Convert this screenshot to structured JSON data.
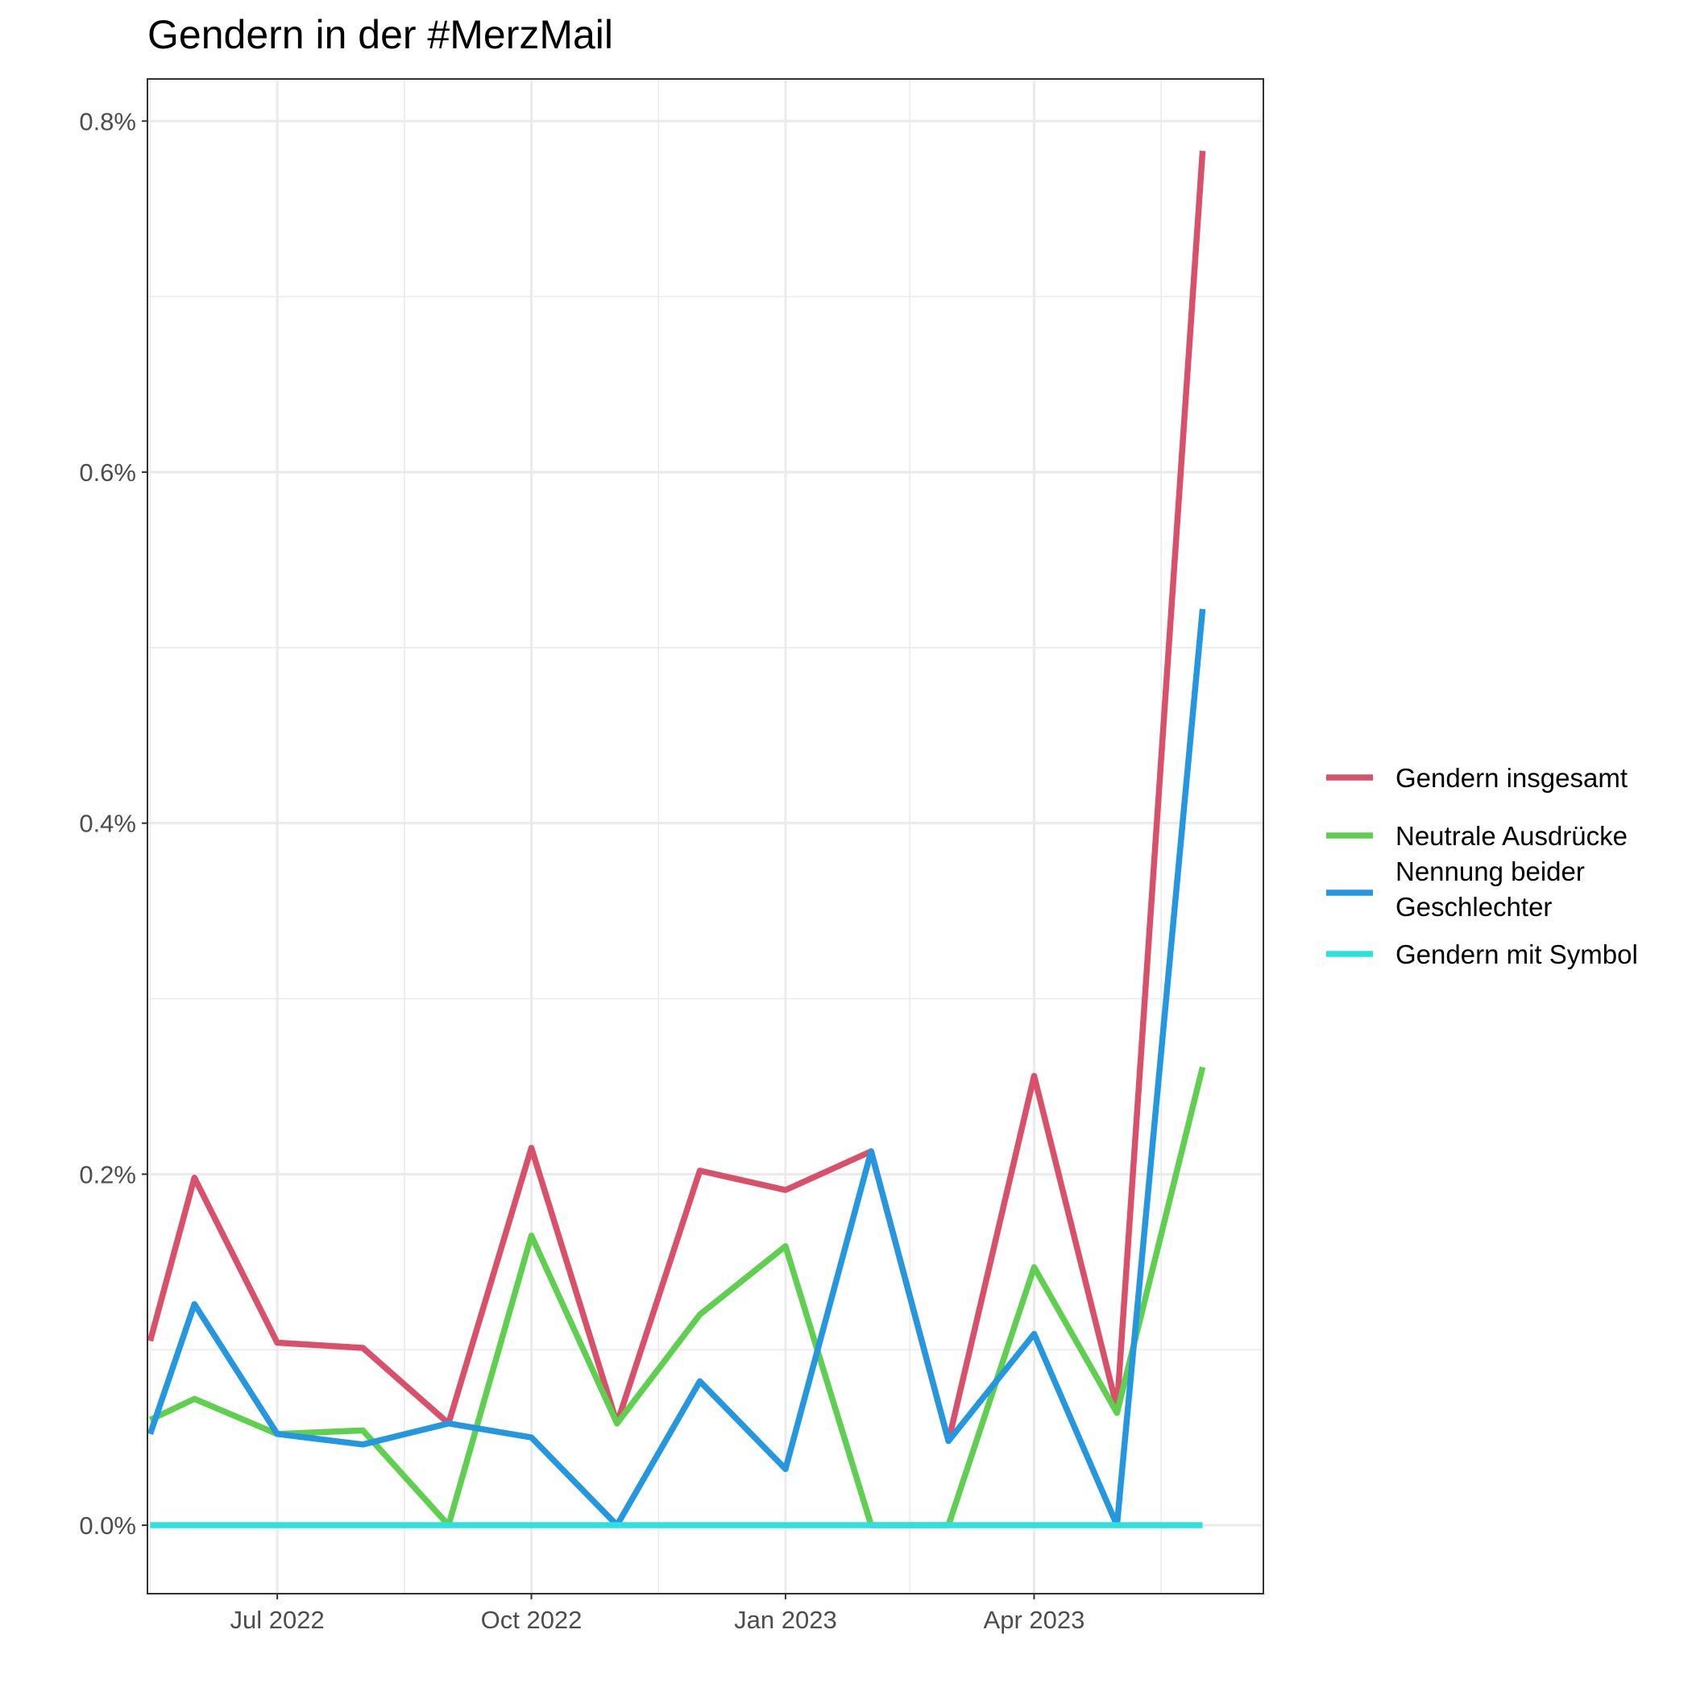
{
  "chart_data": {
    "type": "line",
    "title": "Gendern in der #MerzMail",
    "xlabel": "",
    "ylabel": "",
    "x": [
      "2022-05-16",
      "2022-06-01",
      "2022-07-01",
      "2022-08-01",
      "2022-09-01",
      "2022-10-01",
      "2022-11-01",
      "2022-12-01",
      "2023-01-01",
      "2023-02-01",
      "2023-03-01",
      "2023-04-01",
      "2023-05-01",
      "2023-06-01"
    ],
    "x_ticks": [
      "2022-07-01",
      "2022-10-01",
      "2023-01-01",
      "2023-04-01"
    ],
    "x_tick_labels": [
      "Jul 2022",
      "Oct 2022",
      "Jan 2023",
      "Apr 2023"
    ],
    "xlim": [
      "2022-05-15",
      "2023-06-23"
    ],
    "y_ticks": [
      0,
      0.2,
      0.4,
      0.6,
      0.8
    ],
    "y_tick_labels": [
      "0.0%",
      "0.2%",
      "0.4%",
      "0.6%",
      "0.8%"
    ],
    "ylim": [
      -0.039,
      0.824
    ],
    "grid": true,
    "legend_position": "right",
    "series": [
      {
        "name": "Gendern insgesamt",
        "color": "#d9506a",
        "values": [
          0.105,
          0.198,
          0.104,
          0.101,
          0.058,
          0.215,
          0.058,
          0.202,
          0.191,
          0.213,
          0.048,
          0.256,
          0.067,
          0.783
        ]
      },
      {
        "name": "Neutrale Ausdrücke",
        "color": "#5ecf4f",
        "values": [
          0.06,
          0.072,
          0.052,
          0.054,
          0.0,
          0.165,
          0.058,
          0.12,
          0.159,
          0.0,
          0.0,
          0.147,
          0.064,
          0.261
        ]
      },
      {
        "name": "Nennung beider Geschlechter",
        "color": "#2497df",
        "values": [
          0.052,
          0.126,
          0.052,
          0.046,
          0.058,
          0.05,
          0.0,
          0.082,
          0.032,
          0.213,
          0.048,
          0.109,
          0.0,
          0.522
        ]
      },
      {
        "name": "Gendern mit Symbol",
        "color": "#2ee0e0",
        "values": [
          0.0,
          0.0,
          0.0,
          0.0,
          0.0,
          0.0,
          0.0,
          0.0,
          0.0,
          0.0,
          0.0,
          0.0,
          0.0,
          0.0
        ]
      }
    ]
  }
}
